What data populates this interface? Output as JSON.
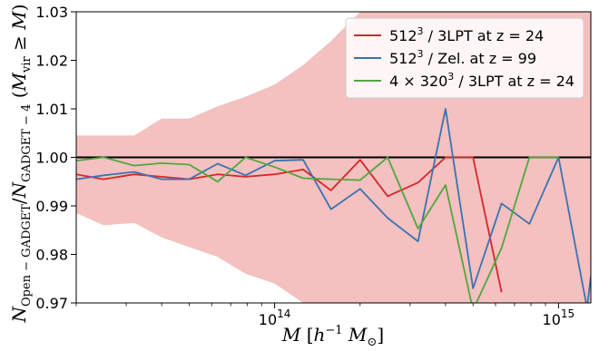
{
  "chart_data": {
    "type": "line",
    "title": "",
    "xlabel": "M [h^-1 M_⊙]",
    "ylabel": "N_Open-GADGET / N_GADGET-4 (M_vir ≥ M)",
    "xscale": "log",
    "xlim": [
      20000000000000.0,
      1300000000000000.0
    ],
    "ylim": [
      0.97,
      1.03
    ],
    "grid": false,
    "legend_position": "top-right",
    "x_tick_labels": [
      "10^14",
      "10^15"
    ],
    "y_tick_labels": [
      "0.97",
      "0.98",
      "0.99",
      "1.00",
      "1.01",
      "1.02",
      "1.03"
    ],
    "y_ticks": [
      0.97,
      0.98,
      0.99,
      1.0,
      1.01,
      1.02,
      1.03
    ],
    "reference_line": 1.0,
    "band": {
      "color": "#f4c0c0",
      "x": [
        20000000000000.0,
        25000000000000.0,
        32000000000000.0,
        40000000000000.0,
        50000000000000.0,
        63000000000000.0,
        79000000000000.0,
        100000000000000.0,
        126000000000000.0,
        158000000000000.0,
        200000000000000.0,
        250000000000000.0,
        320000000000000.0,
        400000000000000.0,
        500000000000000.0,
        630000000000000.0,
        790000000000000.0,
        1000000000000000.0,
        1300000000000000.0
      ],
      "upper": [
        1.0045,
        1.0045,
        1.0045,
        1.008,
        1.008,
        1.0105,
        1.0125,
        1.015,
        1.019,
        1.024,
        1.03,
        1.03,
        1.03,
        1.03,
        1.03,
        1.03,
        1.03,
        1.03,
        1.03
      ],
      "lower": [
        0.9885,
        0.986,
        0.9865,
        0.9835,
        0.9815,
        0.9795,
        0.976,
        0.974,
        0.97,
        0.97,
        0.97,
        0.97,
        0.97,
        0.97,
        0.97,
        0.97,
        0.97,
        0.97,
        0.97
      ]
    },
    "series": [
      {
        "name": "512³ / 3LPT at z = 24",
        "color": "#d62728",
        "x": [
          20000000000000.0,
          25000000000000.0,
          32000000000000.0,
          40000000000000.0,
          50000000000000.0,
          63000000000000.0,
          79000000000000.0,
          100000000000000.0,
          126000000000000.0,
          158000000000000.0,
          200000000000000.0,
          250000000000000.0,
          320000000000000.0,
          400000000000000.0,
          500000000000000.0,
          630000000000000.0
        ],
        "y": [
          0.9965,
          0.9955,
          0.9965,
          0.996,
          0.9955,
          0.9965,
          0.996,
          0.9965,
          0.9975,
          0.9932,
          0.9995,
          0.992,
          0.9948,
          1.0,
          1.0,
          0.9722
        ]
      },
      {
        "name": "512³ / Zel. at z = 99",
        "color": "#3a73b0",
        "x": [
          20000000000000.0,
          25000000000000.0,
          32000000000000.0,
          40000000000000.0,
          50000000000000.0,
          63000000000000.0,
          79000000000000.0,
          100000000000000.0,
          126000000000000.0,
          158000000000000.0,
          200000000000000.0,
          250000000000000.0,
          320000000000000.0,
          400000000000000.0,
          500000000000000.0,
          630000000000000.0,
          790000000000000.0,
          1000000000000000.0,
          1260000000000000.0,
          1300000000000000.0
        ],
        "y": [
          0.9955,
          0.9963,
          0.997,
          0.9955,
          0.9955,
          0.9987,
          0.9963,
          0.9993,
          0.9995,
          0.9893,
          0.9935,
          0.9875,
          0.9827,
          1.01,
          0.973,
          0.9905,
          0.9863,
          1.0,
          0.969,
          0.9755
        ]
      },
      {
        "name": "4 × 320³ / 3LPT at z = 24",
        "color": "#4fa83d",
        "x": [
          20000000000000.0,
          25000000000000.0,
          32000000000000.0,
          40000000000000.0,
          50000000000000.0,
          63000000000000.0,
          79000000000000.0,
          100000000000000.0,
          126000000000000.0,
          158000000000000.0,
          200000000000000.0,
          250000000000000.0,
          320000000000000.0,
          400000000000000.0,
          500000000000000.0,
          630000000000000.0,
          790000000000000.0,
          1000000000000000.0
        ],
        "y": [
          0.9993,
          1.0,
          0.9983,
          0.9988,
          0.9985,
          0.995,
          1.0,
          0.998,
          0.9957,
          0.9955,
          0.9953,
          1.0,
          0.9853,
          0.9943,
          0.9685,
          0.9813,
          1.0,
          1.0
        ]
      }
    ]
  }
}
